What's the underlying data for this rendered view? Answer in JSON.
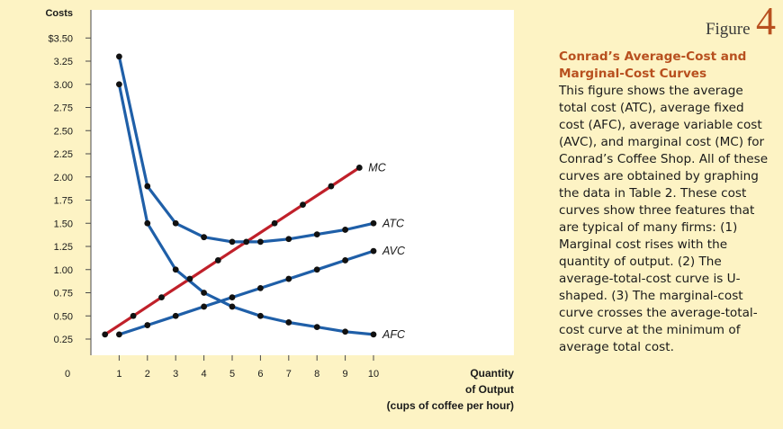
{
  "figure": {
    "word": "Figure",
    "number": "4"
  },
  "caption": {
    "title": "Conrad’s Average-Cost and Marginal-Cost Curves",
    "body": "This figure shows the average total cost (ATC), average fixed cost (AFC), average variable cost (AVC), and marginal cost (MC) for Conrad’s Coffee Shop. All of these curves are obtained by graphing the data in Table 2. These cost curves show three features that are typical of many firms: (1) Marginal cost rises with the quantity of output. (2) The average-total-cost curve is U-shaped. (3) The marginal-cost curve crosses the average-total-cost curve at the minimum of average total cost."
  },
  "colors": {
    "background": "#fdf3c4",
    "plot_background": "#ffffff",
    "blue_curve": "#1f5fa8",
    "red_curve": "#c0202a",
    "accent": "#b8501f"
  },
  "chart_data": {
    "type": "line",
    "ylabel": "Costs",
    "xlabel_lines": [
      "Quantity",
      "of Output",
      "(cups of coffee per hour)"
    ],
    "origin_label": "0",
    "xlim": [
      0,
      10
    ],
    "ylim": [
      0,
      3.5
    ],
    "x_ticks": [
      "1",
      "2",
      "3",
      "4",
      "5",
      "6",
      "7",
      "8",
      "9",
      "10"
    ],
    "y_ticks": [
      "$3.50",
      "3.25",
      "3.00",
      "2.75",
      "2.50",
      "2.25",
      "2.00",
      "1.75",
      "1.50",
      "1.25",
      "1.00",
      "0.75",
      "0.50",
      "0.25"
    ],
    "y_tick_values": [
      3.5,
      3.25,
      3.0,
      2.75,
      2.5,
      2.25,
      2.0,
      1.75,
      1.5,
      1.25,
      1.0,
      0.75,
      0.5,
      0.25
    ],
    "series": [
      {
        "name": "MC",
        "color": "red",
        "x": [
          0.5,
          1.5,
          2.5,
          3.5,
          4.5,
          5.5,
          6.5,
          7.5,
          8.5,
          9.5
        ],
        "y": [
          0.3,
          0.5,
          0.7,
          0.9,
          1.1,
          1.3,
          1.5,
          1.7,
          1.9,
          2.1
        ]
      },
      {
        "name": "ATC",
        "color": "blue",
        "x": [
          1,
          2,
          3,
          4,
          5,
          6,
          7,
          8,
          9,
          10
        ],
        "y": [
          3.3,
          1.9,
          1.5,
          1.35,
          1.3,
          1.3,
          1.33,
          1.38,
          1.43,
          1.5
        ]
      },
      {
        "name": "AVC",
        "color": "blue",
        "x": [
          1,
          2,
          3,
          4,
          5,
          6,
          7,
          8,
          9,
          10
        ],
        "y": [
          0.3,
          0.4,
          0.5,
          0.6,
          0.7,
          0.8,
          0.9,
          1.0,
          1.1,
          1.2
        ]
      },
      {
        "name": "AFC",
        "color": "blue",
        "x": [
          1,
          2,
          3,
          4,
          5,
          6,
          7,
          8,
          9,
          10
        ],
        "y": [
          3.0,
          1.5,
          1.0,
          0.75,
          0.6,
          0.5,
          0.43,
          0.38,
          0.33,
          0.3
        ]
      }
    ]
  }
}
